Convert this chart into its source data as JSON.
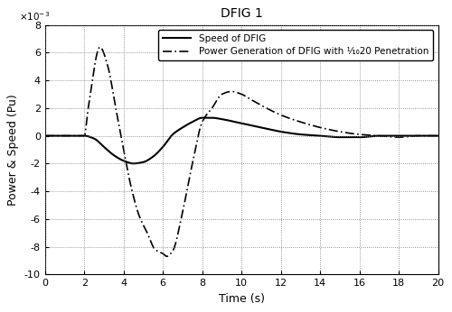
{
  "title": "DFIG 1",
  "xlabel": "Time (s)",
  "ylabel": "Power & Speed (Pu)",
  "xlim": [
    0,
    20
  ],
  "ylim": [
    -0.01,
    0.008
  ],
  "yticks": [
    -0.01,
    -0.008,
    -0.006,
    -0.004,
    -0.002,
    0.0,
    0.002,
    0.004,
    0.006,
    0.008
  ],
  "ytick_labels": [
    "-10",
    "-8",
    "-6",
    "-4",
    "-2",
    "0",
    "2",
    "4",
    "6",
    "8"
  ],
  "xticks": [
    0,
    2,
    4,
    6,
    8,
    10,
    12,
    14,
    16,
    18,
    20
  ],
  "xtick_labels": [
    "0",
    "2",
    "4",
    "6",
    "8",
    "10",
    "12",
    "14",
    "16",
    "18",
    "20"
  ],
  "legend_solid": "Speed of DFIG",
  "legend_dashed": "Power Generation of DFIG with ⅒20 Penetration",
  "background_color": "#ffffff",
  "line_color": "#000000",
  "speed_points_t": [
    0,
    2,
    2.5,
    3,
    3.5,
    4,
    4.5,
    5,
    5.5,
    6,
    6.5,
    7,
    7.5,
    8,
    8.5,
    9,
    10,
    11,
    12,
    13,
    14,
    15,
    16,
    17,
    18,
    19,
    20
  ],
  "speed_points_y": [
    0,
    0,
    -0.0002,
    -0.0008,
    -0.0014,
    -0.0018,
    -0.002,
    -0.0019,
    -0.0015,
    -0.0008,
    0.0001,
    0.0006,
    0.001,
    0.0013,
    0.0013,
    0.0012,
    0.0009,
    0.0006,
    0.0003,
    0.0001,
    0.0,
    -0.0001,
    -0.0001,
    0.0,
    0.0,
    0.0,
    0.0
  ],
  "power_points_t": [
    0,
    2,
    2.2,
    2.8,
    3.2,
    3.6,
    4.0,
    4.4,
    4.8,
    5.2,
    5.6,
    6.0,
    6.2,
    6.5,
    7.0,
    7.5,
    8.0,
    8.5,
    9.0,
    9.5,
    10.0,
    10.5,
    11.0,
    12.0,
    13.0,
    14.0,
    15.0,
    16.0,
    17.0,
    18.0,
    19.0,
    20.0
  ],
  "power_points_y": [
    0,
    0,
    0.002,
    0.0064,
    0.005,
    0.002,
    -0.001,
    -0.0038,
    -0.0058,
    -0.007,
    -0.0082,
    -0.0085,
    -0.0087,
    -0.0083,
    -0.0055,
    -0.002,
    0.001,
    0.002,
    0.003,
    0.0032,
    0.003,
    0.0026,
    0.0022,
    0.0015,
    0.001,
    0.0006,
    0.0003,
    0.0001,
    0.0,
    -0.0001,
    0.0,
    0.0
  ]
}
